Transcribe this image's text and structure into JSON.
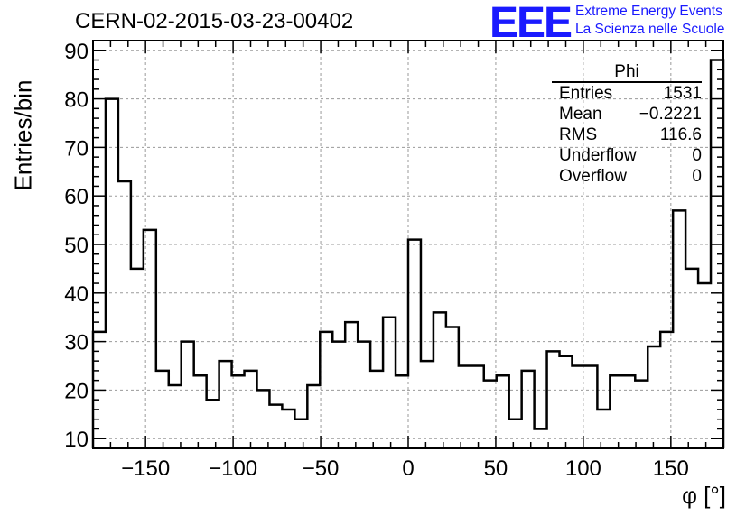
{
  "title": "CERN-02-2015-03-23-00402",
  "logo": {
    "mark": "EEE",
    "line1": "Extreme Energy Events",
    "line2": "La Scienza nelle Scuole",
    "color": "#1a1aff"
  },
  "axes": {
    "xlabel": "φ [°]",
    "ylabel": "Entries/bin"
  },
  "stats": {
    "name": "Phi",
    "rows": [
      {
        "label": "Entries",
        "value": "1531"
      },
      {
        "label": "Mean",
        "value": "−0.2221"
      },
      {
        "label": "RMS",
        "value": "116.6"
      },
      {
        "label": "Underflow",
        "value": "0"
      },
      {
        "label": "Overflow",
        "value": "0"
      }
    ]
  },
  "chart_data": {
    "type": "bar",
    "style": "step-histogram",
    "title": "CERN-02-2015-03-23-00402",
    "xlabel": "φ [°]",
    "ylabel": "Entries/bin",
    "xlim": [
      -180,
      180
    ],
    "ylim": [
      8,
      92
    ],
    "bin_width": 7.2,
    "x_ticks": [
      -150,
      -100,
      -50,
      0,
      50,
      100,
      150
    ],
    "y_ticks": [
      10,
      20,
      30,
      40,
      50,
      60,
      70,
      80,
      90
    ],
    "grid": true,
    "line_color": "#000000",
    "values": [
      32,
      80,
      63,
      45,
      53,
      24,
      21,
      30,
      23,
      18,
      26,
      23,
      24,
      20,
      17,
      16,
      14,
      21,
      32,
      30,
      34,
      30,
      24,
      35,
      23,
      51,
      26,
      36,
      33,
      25,
      25,
      22,
      23,
      14,
      24,
      12,
      28,
      27,
      25,
      25,
      16,
      23,
      23,
      22,
      29,
      32,
      57,
      45,
      42,
      88
    ]
  }
}
